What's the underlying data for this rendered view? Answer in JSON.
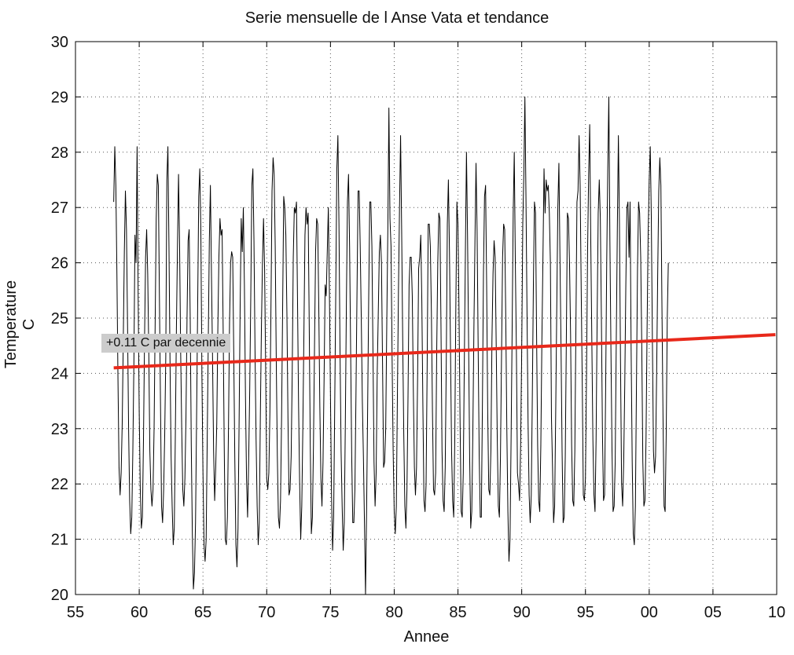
{
  "chart_data": {
    "type": "line",
    "title": "Serie mensuelle de l Anse Vata et tendance",
    "xlabel": "Annee",
    "ylabel": "Temperature  C",
    "x_ticks": [
      "55",
      "60",
      "65",
      "70",
      "75",
      "80",
      "85",
      "90",
      "95",
      "00",
      "05",
      "10"
    ],
    "y_ticks": [
      "20",
      "21",
      "22",
      "23",
      "24",
      "25",
      "26",
      "27",
      "28",
      "29",
      "30"
    ],
    "xlim": [
      1955,
      2010
    ],
    "ylim": [
      20,
      30
    ],
    "grid": true,
    "annotation": "+0.11 C par decennie",
    "series": [
      {
        "color": "#000000",
        "x_start": 1958.0,
        "x_step": 0.083333,
        "values": [
          27.1,
          28.1,
          27.4,
          25.8,
          23.9,
          22.3,
          21.8,
          22.2,
          23.1,
          24.6,
          26.2,
          27.3,
          26.6,
          24.9,
          23.0,
          21.7,
          21.1,
          21.4,
          22.6,
          24.2,
          26.5,
          26.0,
          28.1,
          25.4,
          23.3,
          21.9,
          21.2,
          21.4,
          22.8,
          24.6,
          26.1,
          26.6,
          25.8,
          24.4,
          22.6,
          21.9,
          21.6,
          21.9,
          23.0,
          24.9,
          26.8,
          27.6,
          27.4,
          25.4,
          23.5,
          21.6,
          21.3,
          21.9,
          22.9,
          24.3,
          27.5,
          28.1,
          26.3,
          24.2,
          22.5,
          21.6,
          20.9,
          21.2,
          22.9,
          24.8,
          26.3,
          27.6,
          26.3,
          24.4,
          23.0,
          21.9,
          21.6,
          22.1,
          23.2,
          25.0,
          26.4,
          26.6,
          25.0,
          22.7,
          21.1,
          20.1,
          20.4,
          21.3,
          23.2,
          25.2,
          27.2,
          27.7,
          26.6,
          24.0,
          22.2,
          20.9,
          20.6,
          21.0,
          22.8,
          24.6,
          26.4,
          27.4,
          25.8,
          24.3,
          22.6,
          21.7,
          22.3,
          23.1,
          24.8,
          26.1,
          26.8,
          26.5,
          26.6,
          24.8,
          22.7,
          21.0,
          20.9,
          21.4,
          23.0,
          24.9,
          26.0,
          26.2,
          26.1,
          24.3,
          22.4,
          20.9,
          20.5,
          21.2,
          23.1,
          25.2,
          26.8,
          26.2,
          27.0,
          25.6,
          23.6,
          22.1,
          21.4,
          22.4,
          23.7,
          25.4,
          27.4,
          27.7,
          26.4,
          24.4,
          22.8,
          21.6,
          20.9,
          21.3,
          23.2,
          24.8,
          26.0,
          26.8,
          25.9,
          24.1,
          22.1,
          21.9,
          22.2,
          23.3,
          25.2,
          27.3,
          27.9,
          27.6,
          26.3,
          24.2,
          22.5,
          21.4,
          21.2,
          21.7,
          23.2,
          25.2,
          27.2,
          27.0,
          26.5,
          25.1,
          23.2,
          21.8,
          21.9,
          22.5,
          24.0,
          26.1,
          27.0,
          26.9,
          27.1,
          25.3,
          23.4,
          22.0,
          21.0,
          21.6,
          23.0,
          24.7,
          26.5,
          27.0,
          26.7,
          26.9,
          24.9,
          22.7,
          21.1,
          21.4,
          22.7,
          24.5,
          26.2,
          26.8,
          26.7,
          25.2,
          23.4,
          22.1,
          21.6,
          22.4,
          23.9,
          25.6,
          25.4,
          26.2,
          27.0,
          25.5,
          23.6,
          21.8,
          20.8,
          21.4,
          23.4,
          25.5,
          27.7,
          28.3,
          26.7,
          24.4,
          22.6,
          21.6,
          20.8,
          21.3,
          23.1,
          25.3,
          27.1,
          27.6,
          26.3,
          24.4,
          22.5,
          21.3,
          21.3,
          21.9,
          23.6,
          25.5,
          27.3,
          27.3,
          26.3,
          25.0,
          23.5,
          22.5,
          21.3,
          20.0,
          21.5,
          23.4,
          25.4,
          27.1,
          27.1,
          26.3,
          24.4,
          22.4,
          21.6,
          22.2,
          24.0,
          25.1,
          26.2,
          26.5,
          26.0,
          24.2,
          22.3,
          22.4,
          23.0,
          24.9,
          26.6,
          28.8,
          26.8,
          26.3,
          24.3,
          22.6,
          21.5,
          21.1,
          21.6,
          23.6,
          25.5,
          27.0,
          28.3,
          26.6,
          24.6,
          22.9,
          21.6,
          21.2,
          21.9,
          23.6,
          25.6,
          26.1,
          26.1,
          25.4,
          23.7,
          22.3,
          21.8,
          22.3,
          23.9,
          25.9,
          26.1,
          26.5,
          25.3,
          23.4,
          21.7,
          21.5,
          22.0,
          24.1,
          26.7,
          26.7,
          26.3,
          25.1,
          23.3,
          21.9,
          21.8,
          22.2,
          24.4,
          26.0,
          26.9,
          26.8,
          24.9,
          22.6,
          21.7,
          21.5,
          22.3,
          24.2,
          26.7,
          27.5,
          26.2,
          24.4,
          22.6,
          21.7,
          21.4,
          22.8,
          25.2,
          27.1,
          26.7,
          25.1,
          23.1,
          21.5,
          21.4,
          22.2,
          24.2,
          26.2,
          28.0,
          26.5,
          24.6,
          22.5,
          21.2,
          21.5,
          22.9,
          24.8,
          26.4,
          27.8,
          26.6,
          24.5,
          22.5,
          21.4,
          21.4,
          23.4,
          25.8,
          27.2,
          27.4,
          25.6,
          23.3,
          21.9,
          21.8,
          22.6,
          24.6,
          25.8,
          26.4,
          26.1,
          24.5,
          22.8,
          21.6,
          21.4,
          22.5,
          24.3,
          26.1,
          26.7,
          26.6,
          25.0,
          23.0,
          21.5,
          20.6,
          21.0,
          22.8,
          24.8,
          26.9,
          28.0,
          26.0,
          24.4,
          22.2,
          22.0,
          21.7,
          22.7,
          24.4,
          26.7,
          27.6,
          29.0,
          27.2,
          25.1,
          23.1,
          21.8,
          21.3,
          21.8,
          23.6,
          25.6,
          27.1,
          26.9,
          24.7,
          22.7,
          21.7,
          21.5,
          22.7,
          24.6,
          26.1,
          27.7,
          26.9,
          27.5,
          27.3,
          27.4,
          26.9,
          26.0,
          23.2,
          22.3,
          21.3,
          21.6,
          23.3,
          25.2,
          27.0,
          27.8,
          26.1,
          24.5,
          22.6,
          21.3,
          21.4,
          22.5,
          24.6,
          26.9,
          26.8,
          26.0,
          24.7,
          22.7,
          21.7,
          21.6,
          22.6,
          24.8,
          27.1,
          27.3,
          28.3,
          27.4,
          25.5,
          23.8,
          21.8,
          21.7,
          22.1,
          24.0,
          26.2,
          27.6,
          28.5,
          26.4,
          24.6,
          22.8,
          21.8,
          21.5,
          22.8,
          25.0,
          26.9,
          27.5,
          26.8,
          25.0,
          22.9,
          21.7,
          21.8,
          23.7,
          26.0,
          27.7,
          29.0,
          26.4,
          24.4,
          22.6,
          21.5,
          21.6,
          22.4,
          24.6,
          26.6,
          28.3,
          26.7,
          24.2,
          22.0,
          21.6,
          22.4,
          23.8,
          25.6,
          27.0,
          27.1,
          26.1,
          27.1,
          24.4,
          22.4,
          21.1,
          20.9,
          21.6,
          23.8,
          25.9,
          27.1,
          26.9,
          26.1,
          24.5,
          22.4,
          21.6,
          21.7,
          22.8,
          24.8,
          26.5,
          27.5,
          28.1,
          26.8,
          24.6,
          22.6,
          22.2,
          22.5,
          24.0,
          25.8,
          27.3,
          27.9,
          27.4,
          25.2,
          23.2,
          21.6,
          21.5,
          22.9,
          25.0,
          26.0
        ]
      },
      {
        "name": "+0.11 C par decennie",
        "color": "#e8281a",
        "x": [
          1958.0,
          2009.9
        ],
        "values": [
          24.1,
          24.7
        ]
      }
    ]
  }
}
